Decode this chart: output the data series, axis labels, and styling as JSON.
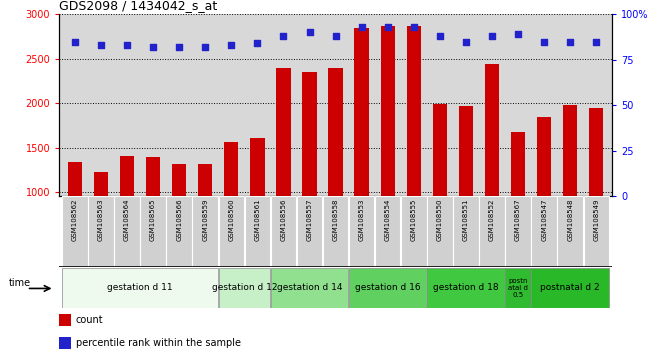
{
  "title": "GDS2098 / 1434042_s_at",
  "samples": [
    "GSM108562",
    "GSM108563",
    "GSM108564",
    "GSM108565",
    "GSM108566",
    "GSM108559",
    "GSM108560",
    "GSM108561",
    "GSM108556",
    "GSM108557",
    "GSM108558",
    "GSM108553",
    "GSM108554",
    "GSM108555",
    "GSM108550",
    "GSM108551",
    "GSM108552",
    "GSM108567",
    "GSM108547",
    "GSM108548",
    "GSM108549"
  ],
  "counts": [
    1340,
    1230,
    1400,
    1390,
    1310,
    1310,
    1560,
    1610,
    2390,
    2350,
    2390,
    2840,
    2870,
    2870,
    1990,
    1970,
    2440,
    1670,
    1840,
    1980,
    1950
  ],
  "percentiles": [
    85,
    83,
    83,
    82,
    82,
    82,
    83,
    84,
    88,
    90,
    88,
    93,
    93,
    93,
    88,
    85,
    88,
    89,
    85,
    85,
    85
  ],
  "groups": [
    {
      "label": "gestation d 11",
      "start": 0,
      "end": 5,
      "color": "#edfaed"
    },
    {
      "label": "gestation d 12",
      "start": 6,
      "end": 7,
      "color": "#c8f0c8"
    },
    {
      "label": "gestation d 14",
      "start": 8,
      "end": 10,
      "color": "#90e090"
    },
    {
      "label": "gestation d 16",
      "start": 11,
      "end": 13,
      "color": "#60d060"
    },
    {
      "label": "gestation d 18",
      "start": 14,
      "end": 16,
      "color": "#40c840"
    },
    {
      "label": "postn\natal d\n0.5",
      "start": 17,
      "end": 17,
      "color": "#30bb30"
    },
    {
      "label": "postnatal d 2",
      "start": 18,
      "end": 20,
      "color": "#28b828"
    }
  ],
  "bar_color": "#cc0000",
  "dot_color": "#2222cc",
  "ylim_left": [
    950,
    3000
  ],
  "ylim_right": [
    0,
    100
  ],
  "yticks_left": [
    1000,
    1500,
    2000,
    2500,
    3000
  ],
  "yticks_right": [
    0,
    25,
    50,
    75,
    100
  ],
  "ylabel_right_labels": [
    "0",
    "25",
    "50",
    "75",
    "100%"
  ],
  "plot_bg": "#d8d8d8",
  "sample_cell_bg": "#d0d0d0",
  "legend_count_label": "count",
  "legend_pct_label": "percentile rank within the sample",
  "bar_width": 0.55
}
